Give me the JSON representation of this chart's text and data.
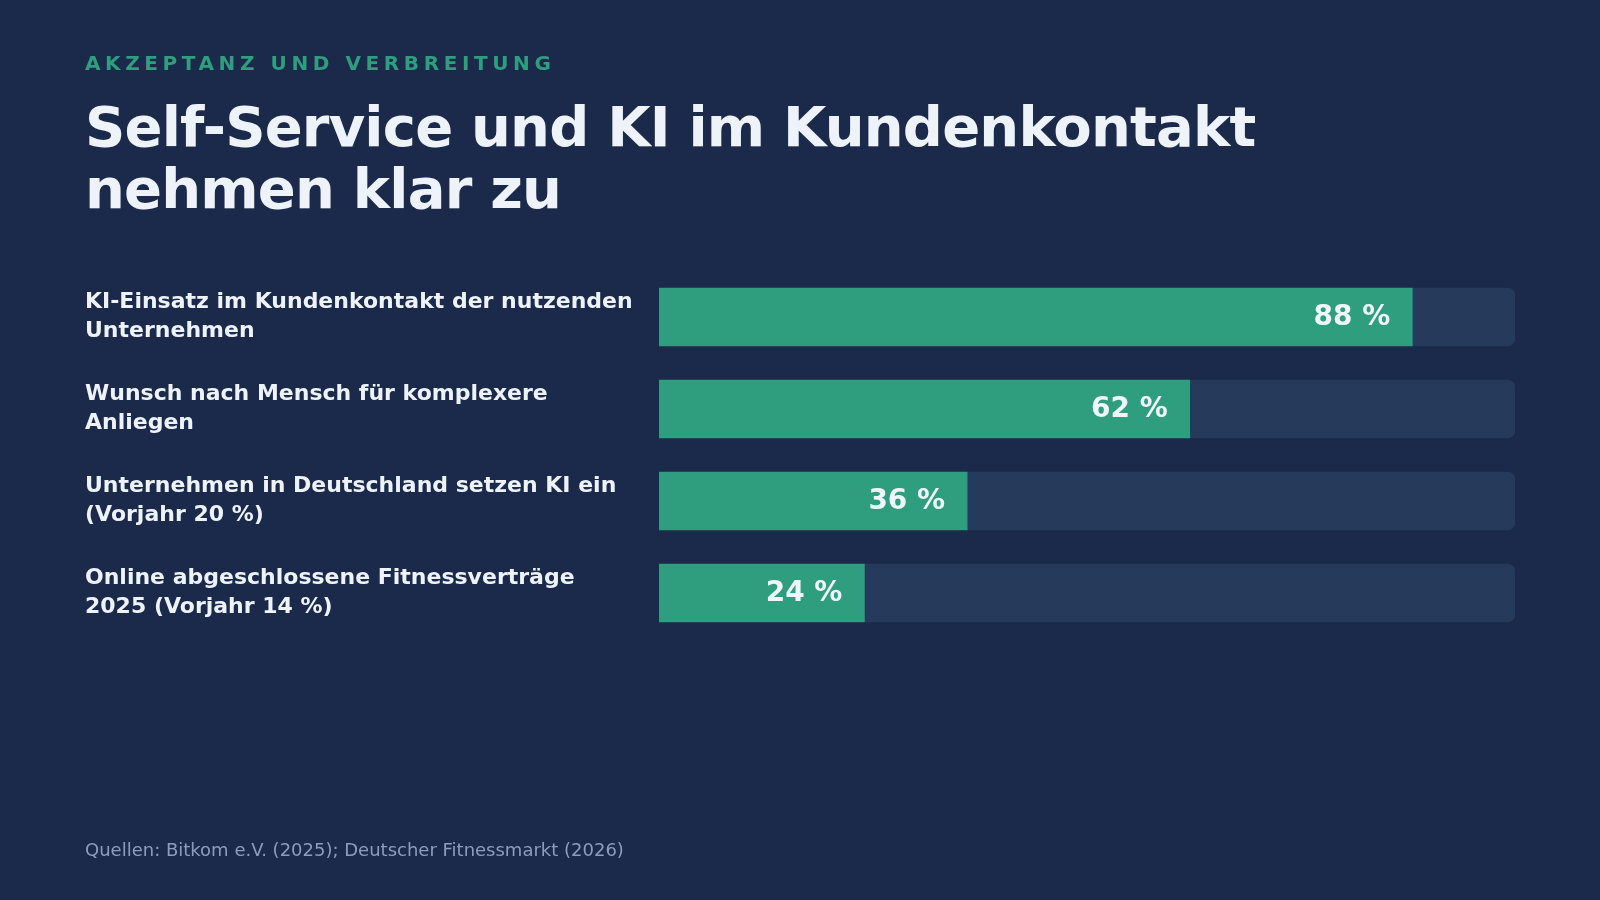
{
  "chart_data": {
    "type": "bar",
    "orientation": "horizontal",
    "stacked": true,
    "subtitle": "AKZEPTANZ UND VERBREITUNG",
    "title": "Self-Service und KI im Kundenkontakt nehmen klar zu",
    "categories": [
      "KI-Einsatz im Kundenkontakt der nutzenden Unternehmen",
      "Wunsch nach Mensch für komplexere Anliegen",
      "Unternehmen in Deutschland setzen KI ein (Vorjahr 20 %)",
      "Online abgeschlossene Fitnessverträge 2025 (Vorjahr 14 %)"
    ],
    "series": [
      {
        "color": "#2e9e7e",
        "values": [
          88,
          62,
          36,
          24
        ],
        "value_labels": [
          "88 %",
          "62 %",
          "36 %",
          "24 %"
        ]
      },
      {
        "color": "#263a5c",
        "values": [
          12,
          38,
          64,
          76
        ]
      }
    ],
    "xlim": [
      0,
      100
    ],
    "tick_labels": "y",
    "annotations": [
      "Quellen: Bitkom e.V. (2025); Deutscher Fitnessmarkt (2026)"
    ]
  }
}
